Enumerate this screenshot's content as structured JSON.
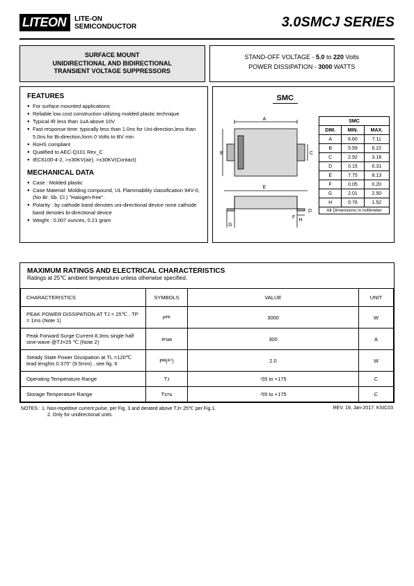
{
  "header": {
    "logo": "LITEON",
    "sub1": "LITE-ON",
    "sub2": "SEMICONDUCTOR",
    "series": "3.0SMCJ SERIES"
  },
  "title_box": {
    "l1": "SURFACE MOUNT",
    "l2": "UNIDIRECTIONAL AND BIDIRECTIONAL",
    "l3": "TRANSIENT VOLTAGE SUPPRESSORS"
  },
  "stand_box": {
    "l1a": "STAND-OFF VOLTAGE - ",
    "l1b": "5.0",
    "l1c": " to ",
    "l1d": "220",
    "l1e": " Volts",
    "l2a": "POWER DISSIPATION   - ",
    "l2b": "3000",
    "l2c": " WATTS"
  },
  "features": {
    "heading": "FEATURES",
    "items": [
      "For surface mounted applications",
      "Reliable low cost construction utilizing molded plastic technique",
      "Typical IR less than 1uA above 10V",
      "Fast response time: typically less than 1.0ns for Uni-direction,less than 5.0ns for Bi-direction,form 0 Volts to BV min",
      "RoHS compliant",
      "Qualified to AEC-Q101 Rev_C",
      "IEC6100-4-2, >±30KV(air); >±30KV(Contact)"
    ]
  },
  "mech": {
    "heading": "MECHANICAL DATA",
    "items": [
      "Case : Molded plastic",
      "Case Material: Molding compound, UL Flammability classification 94V-0, (No Br. Sb. Cl.) \"Halogen-free\".",
      "Polarity : by cathode band denotes uni-directional device none cathode band denotes bi-directional device",
      "Weight : 0.007 ounces, 0.21 gram"
    ]
  },
  "smc_label": "SMC",
  "dim_table": {
    "header": [
      "DIM.",
      "MIN.",
      "MAX."
    ],
    "title": "SMC",
    "rows": [
      [
        "A",
        "6.60",
        "7.11"
      ],
      [
        "B",
        "5.59",
        "6.22"
      ],
      [
        "C",
        "2.92",
        "3.18"
      ],
      [
        "D",
        "0.15",
        "0.31"
      ],
      [
        "E",
        "7.75",
        "8.13"
      ],
      [
        "F",
        "0.05",
        "0.20"
      ],
      [
        "G",
        "2.01",
        "2.50"
      ],
      [
        "H",
        "0.76",
        "1.52"
      ]
    ],
    "footer": "All Dimensions in millimeter"
  },
  "ratings": {
    "heading": "MAXIMUM RATINGS AND ELECTRICAL CHARACTERISTICS",
    "sub": "Ratings at 25℃ ambient temperature unless otherwise specified.",
    "cols": [
      "CHARACTERISTICS",
      "SYMBOLS",
      "VALUE",
      "UNIT"
    ],
    "rows": [
      {
        "c": "PEAK POWER DISSIPATION AT TJ = 25℃ , TP = 1ms (Note 1)",
        "s": "Pᴾᴷ",
        "v": "3000",
        "u": "W"
      },
      {
        "c": "Peak Forward Surge Current 8.3ms single half sine-wave @TJ=25 ℃ (Note 2)",
        "s": "Iꜰꜱᴍ",
        "v": "300",
        "u": "A"
      },
      {
        "c": "Steady State Power Dissipation at TL =120℃ lead lenghts 0.375\" (9.5mm) , see fig. 6",
        "s": "Pᴹ(ᴬⱽ)",
        "v": "2.0",
        "u": "W"
      },
      {
        "c": "Operating Temperature Range",
        "s": "Tᴊ",
        "v": "-55 to +175",
        "u": "C"
      },
      {
        "c": "Storage Temperature Range",
        "s": "Tꜱᴛɢ",
        "v": "-55 to +175",
        "u": "C"
      }
    ]
  },
  "notes": {
    "l1": "NOTES : 1. Non-repetitive current pulse, per Fig. 3 and derated above TJ= 25℃ per Fig.1.",
    "l2": "2. Only for unidirectional units.",
    "rev": "REV. 19, Jan-2017, KSIC03"
  },
  "colors": {
    "gray": "#e5e5e5",
    "text": "#000000"
  }
}
